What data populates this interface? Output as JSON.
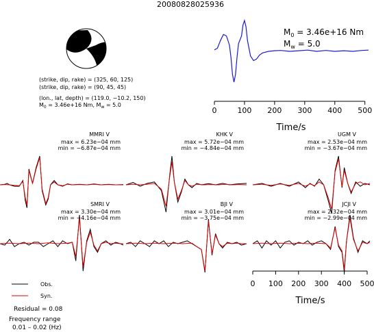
{
  "figure": {
    "title": "20080828025936",
    "mechanism": {
      "plane1": "(strike, dip, rake) = (325, 60, 125)",
      "plane2": "(strike, dip, rake) = (90, 45, 45)",
      "location": "(lon., lat, depth) = (119.0, −10.2, 150)",
      "moment_label": "M",
      "moment_sub": "0",
      "moment_value": " = 3.46e+16 Nm, M",
      "mw_sub": "w",
      "mw_value": " = 5.0"
    },
    "stf": {
      "m0_label": "M",
      "m0_sub": "0",
      "m0_value": " = 3.46e+16 Nm",
      "mw_label": "M",
      "mw_sub": "w",
      "mw_value": " = 5.0"
    },
    "legend": {
      "obs": "Obs.",
      "syn": "Syn.",
      "residual": "Residual = 0.08",
      "freq_title": "Frequency range",
      "freq_value": "0.01 – 0.02 (Hz)"
    }
  },
  "chart_data": [
    {
      "type": "line",
      "title": "",
      "xlabel": "Time/s",
      "ylabel": "",
      "xlim": [
        0,
        512
      ],
      "xticks": [
        0,
        100,
        200,
        300,
        400,
        500
      ],
      "grid": false,
      "series": [
        {
          "color": "#1a1ad6",
          "x": [
            0,
            10,
            20,
            30,
            40,
            50,
            55,
            60,
            65,
            70,
            75,
            80,
            90,
            95,
            100,
            105,
            110,
            120,
            130,
            140,
            150,
            160,
            180,
            200,
            220,
            250,
            280,
            310,
            340,
            370,
            400,
            430,
            460,
            490,
            512
          ],
          "y": [
            0.05,
            0.1,
            0.35,
            0.55,
            0.5,
            0.2,
            -0.2,
            -0.75,
            -1.0,
            -0.75,
            -0.2,
            0.25,
            0.5,
            0.85,
            1.0,
            0.8,
            0.35,
            -0.15,
            -0.3,
            -0.25,
            -0.12,
            -0.05,
            0.0,
            0.02,
            0.03,
            0.0,
            0.02,
            0.04,
            0.0,
            0.03,
            0.0,
            0.02,
            0.0,
            0.03,
            0.04
          ]
        }
      ]
    },
    {
      "type": "line",
      "title": "MMRI V",
      "max": "max = 6.23e−04 mm",
      "min": "min = −6.87e−04 mm",
      "series": [
        {
          "name": "Obs.",
          "color": "#000000",
          "x": [
            0,
            20,
            30,
            40,
            60,
            80,
            95,
            105,
            112,
            120,
            135,
            150,
            165,
            175,
            190,
            200,
            210,
            225,
            240,
            260,
            280,
            300,
            330,
            360,
            390,
            420,
            450,
            480,
            512
          ],
          "y": [
            0.0,
            0.02,
            0.05,
            0.0,
            -0.05,
            -0.05,
            0.15,
            -0.55,
            -0.8,
            0.55,
            0.05,
            0.6,
            1.0,
            -0.2,
            -0.7,
            -0.5,
            0.0,
            0.15,
            0.0,
            -0.05,
            0.03,
            0.0,
            0.02,
            0.0,
            0.03,
            0.0,
            0.02,
            0.0,
            0.01
          ]
        },
        {
          "name": "Syn.",
          "color": "#e00000",
          "x": [
            0,
            20,
            40,
            60,
            80,
            95,
            105,
            112,
            120,
            135,
            150,
            165,
            175,
            190,
            200,
            210,
            225,
            240,
            260,
            280,
            300,
            330,
            360,
            390,
            420,
            450,
            480,
            512
          ],
          "y": [
            0.0,
            0.01,
            0.0,
            -0.02,
            -0.03,
            0.12,
            -0.45,
            -0.7,
            0.5,
            0.05,
            0.55,
            0.95,
            -0.15,
            -0.65,
            -0.45,
            0.0,
            0.1,
            0.0,
            -0.03,
            0.02,
            0.0,
            0.01,
            0.0,
            0.02,
            0.0,
            0.01,
            0.0,
            0.0
          ]
        }
      ]
    },
    {
      "type": "line",
      "title": "KHK V",
      "max": "max = 5.72e−04 mm",
      "min": "min = −4.84e−04 mm",
      "series": [
        {
          "name": "Obs.",
          "color": "#000000",
          "x": [
            0,
            30,
            60,
            90,
            120,
            150,
            170,
            185,
            195,
            205,
            220,
            235,
            250,
            265,
            280,
            300,
            320,
            350,
            380,
            410,
            440,
            470,
            512
          ],
          "y": [
            0.0,
            0.08,
            -0.05,
            0.05,
            0.1,
            -0.2,
            -0.95,
            0.3,
            1.0,
            0.1,
            -0.6,
            -0.25,
            0.2,
            0.0,
            -0.1,
            0.05,
            0.0,
            0.04,
            0.0,
            0.05,
            0.0,
            0.03,
            0.05
          ]
        },
        {
          "name": "Syn.",
          "color": "#e00000",
          "x": [
            0,
            30,
            60,
            90,
            120,
            150,
            170,
            185,
            195,
            205,
            220,
            235,
            250,
            265,
            280,
            300,
            330,
            360,
            390,
            420,
            450,
            480,
            512
          ],
          "y": [
            0.0,
            0.02,
            0.0,
            0.02,
            0.05,
            -0.15,
            -0.75,
            0.25,
            0.8,
            0.1,
            -0.5,
            -0.2,
            0.15,
            0.0,
            -0.05,
            0.02,
            0.0,
            0.01,
            0.0,
            0.02,
            0.0,
            0.01,
            0.0
          ]
        }
      ]
    },
    {
      "type": "line",
      "title": "UGM V",
      "max": "max = 2.53e−04 mm",
      "min": "min = −3.67e−04 mm",
      "series": [
        {
          "name": "Obs.",
          "color": "#000000",
          "x": [
            0,
            40,
            80,
            120,
            160,
            200,
            230,
            250,
            270,
            290,
            310,
            330,
            345,
            360,
            375,
            390,
            400,
            415,
            430,
            450,
            470,
            490,
            512
          ],
          "y": [
            0.0,
            0.05,
            -0.05,
            0.05,
            -0.05,
            0.1,
            -0.1,
            0.05,
            -0.05,
            0.2,
            0.0,
            -0.55,
            -1.0,
            0.5,
            1.0,
            -0.1,
            0.6,
            0.05,
            -0.3,
            0.1,
            -0.05,
            0.05,
            0.0
          ]
        },
        {
          "name": "Syn.",
          "color": "#e00000",
          "x": [
            0,
            40,
            80,
            120,
            160,
            200,
            230,
            250,
            270,
            290,
            310,
            330,
            345,
            360,
            375,
            390,
            400,
            415,
            430,
            450,
            470,
            490,
            512
          ],
          "y": [
            0.0,
            0.02,
            -0.02,
            0.03,
            -0.02,
            0.05,
            -0.05,
            0.03,
            -0.03,
            0.1,
            0.0,
            -0.45,
            -0.85,
            0.45,
            0.9,
            -0.05,
            0.5,
            0.05,
            -0.25,
            0.05,
            0.1,
            0.0,
            0.05
          ]
        }
      ]
    },
    {
      "type": "line",
      "title": "SMRI V",
      "max": "max = 3.30e−04 mm",
      "min": "min = −4.16e−04 mm",
      "series": [
        {
          "name": "Obs.",
          "color": "#000000",
          "x": [
            0,
            20,
            40,
            60,
            80,
            100,
            120,
            140,
            160,
            180,
            200,
            220,
            240,
            260,
            280,
            300,
            315,
            330,
            345,
            360,
            375,
            390,
            405,
            420,
            440,
            460,
            480,
            500,
            512
          ],
          "y": [
            0.0,
            -0.05,
            0.15,
            -0.1,
            0.0,
            0.05,
            -0.05,
            0.05,
            0.05,
            -0.1,
            0.0,
            0.1,
            -0.1,
            0.1,
            0.0,
            0.05,
            -0.6,
            1.0,
            -0.95,
            0.1,
            0.5,
            -0.1,
            -0.3,
            0.0,
            0.1,
            -0.05,
            0.05,
            0.0,
            -0.05
          ]
        },
        {
          "name": "Syn.",
          "color": "#e00000",
          "x": [
            0,
            40,
            80,
            120,
            160,
            200,
            240,
            280,
            300,
            315,
            330,
            345,
            360,
            375,
            390,
            405,
            420,
            440,
            460,
            480,
            500,
            512
          ],
          "y": [
            0.0,
            0.02,
            0.0,
            0.02,
            0.0,
            0.03,
            0.0,
            0.02,
            0.05,
            -0.45,
            0.9,
            -0.8,
            0.05,
            0.4,
            -0.05,
            -0.25,
            0.0,
            0.05,
            0.0,
            0.02,
            0.0,
            0.0
          ]
        }
      ]
    },
    {
      "type": "line",
      "title": "BJI V",
      "max": "max = 3.01e−04 mm",
      "min": "min = −3.75e−04 mm",
      "series": [
        {
          "name": "Obs.",
          "color": "#000000",
          "x": [
            0,
            20,
            40,
            60,
            80,
            100,
            120,
            140,
            160,
            180,
            200,
            220,
            240,
            260,
            280,
            300,
            320,
            335,
            350,
            365,
            380,
            395,
            410,
            430,
            450,
            470,
            490,
            512
          ],
          "y": [
            0.0,
            0.05,
            -0.1,
            0.1,
            0.0,
            -0.1,
            0.1,
            0.0,
            0.1,
            -0.1,
            0.05,
            0.0,
            0.05,
            0.1,
            0.0,
            -0.1,
            -0.2,
            -1.0,
            0.85,
            -0.4,
            0.35,
            0.0,
            -0.15,
            0.05,
            0.0,
            0.05,
            -0.05,
            0.0
          ]
        },
        {
          "name": "Syn.",
          "color": "#e00000",
          "x": [
            0,
            40,
            80,
            120,
            160,
            200,
            240,
            280,
            300,
            320,
            335,
            350,
            365,
            380,
            395,
            410,
            430,
            450,
            470,
            490,
            512
          ],
          "y": [
            0.0,
            0.02,
            0.0,
            0.02,
            0.0,
            0.02,
            0.0,
            0.02,
            -0.1,
            -0.2,
            -0.95,
            0.8,
            -0.35,
            0.3,
            0.0,
            -0.1,
            0.02,
            0.0,
            0.02,
            0.0,
            0.0
          ]
        }
      ]
    },
    {
      "type": "line",
      "title": "JCJI V",
      "max": "max = 2.32e−04 mm",
      "min": "min = −2.99e−04 mm",
      "xlabel": "Time/s",
      "xlim": [
        0,
        512
      ],
      "xticks": [
        0,
        100,
        200,
        300,
        400,
        500
      ],
      "series": [
        {
          "name": "Obs.",
          "color": "#000000",
          "x": [
            0,
            20,
            40,
            60,
            80,
            100,
            120,
            140,
            160,
            180,
            200,
            220,
            240,
            260,
            280,
            300,
            320,
            340,
            360,
            375,
            390,
            400,
            410,
            425,
            440,
            460,
            480,
            500,
            512
          ],
          "y": [
            0.0,
            0.1,
            -0.15,
            0.1,
            -0.05,
            0.1,
            -0.15,
            0.05,
            0.1,
            -0.05,
            0.05,
            0.0,
            0.1,
            -0.05,
            0.05,
            0.1,
            0.0,
            -0.2,
            0.6,
            -0.1,
            -0.3,
            -1.0,
            0.1,
            1.0,
            0.2,
            -0.3,
            0.1,
            0.0,
            0.1
          ]
        },
        {
          "name": "Syn.",
          "color": "#e00000",
          "x": [
            0,
            40,
            80,
            120,
            160,
            200,
            240,
            280,
            320,
            340,
            360,
            375,
            390,
            400,
            410,
            425,
            440,
            460,
            480,
            500,
            512
          ],
          "y": [
            0.0,
            0.02,
            0.0,
            0.02,
            0.0,
            0.02,
            0.0,
            0.02,
            0.0,
            -0.15,
            0.55,
            -0.05,
            -0.25,
            -0.9,
            0.1,
            0.9,
            0.15,
            -0.25,
            0.05,
            0.0,
            0.05
          ]
        }
      ]
    }
  ]
}
